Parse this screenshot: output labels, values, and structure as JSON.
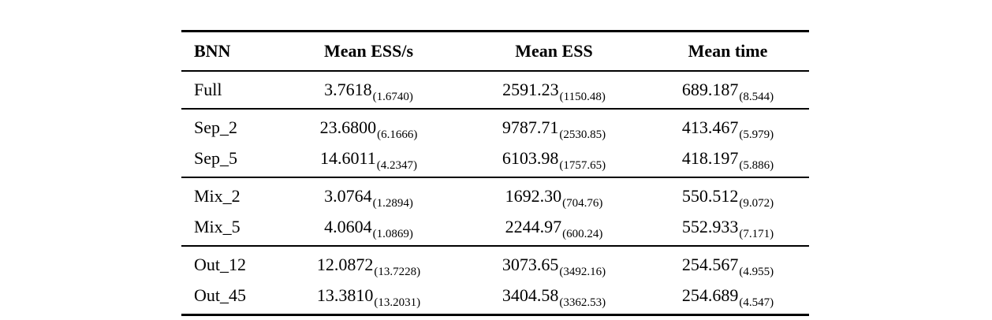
{
  "page": {
    "background_color": "#ffffff",
    "text_color": "#000000"
  },
  "table": {
    "headers": [
      "BNN",
      "Mean ESS/s",
      "Mean ESS",
      "Mean time"
    ],
    "groups": [
      {
        "rows": [
          {
            "bnn": "Full",
            "ess_per_s_mean": "3.7618",
            "ess_per_s_sd": "(1.6740)",
            "ess_mean": "2591.23",
            "ess_sd": "(1150.48)",
            "time_mean": "689.187",
            "time_sd": "(8.544)"
          }
        ]
      },
      {
        "rows": [
          {
            "bnn": "Sep_2",
            "ess_per_s_mean": "23.6800",
            "ess_per_s_sd": "(6.1666)",
            "ess_mean": "9787.71",
            "ess_sd": "(2530.85)",
            "time_mean": "413.467",
            "time_sd": "(5.979)"
          },
          {
            "bnn": "Sep_5",
            "ess_per_s_mean": "14.6011",
            "ess_per_s_sd": "(4.2347)",
            "ess_mean": "6103.98",
            "ess_sd": "(1757.65)",
            "time_mean": "418.197",
            "time_sd": "(5.886)"
          }
        ]
      },
      {
        "rows": [
          {
            "bnn": "Mix_2",
            "ess_per_s_mean": "3.0764",
            "ess_per_s_sd": "(1.2894)",
            "ess_mean": "1692.30",
            "ess_sd": "(704.76)",
            "time_mean": "550.512",
            "time_sd": "(9.072)"
          },
          {
            "bnn": "Mix_5",
            "ess_per_s_mean": "4.0604",
            "ess_per_s_sd": "(1.0869)",
            "ess_mean": "2244.97",
            "ess_sd": "(600.24)",
            "time_mean": "552.933",
            "time_sd": "(7.171)"
          }
        ]
      },
      {
        "rows": [
          {
            "bnn": "Out_12",
            "ess_per_s_mean": "12.0872",
            "ess_per_s_sd": "(13.7228)",
            "ess_mean": "3073.65",
            "ess_sd": "(3492.16)",
            "time_mean": "254.567",
            "time_sd": "(4.955)"
          },
          {
            "bnn": "Out_45",
            "ess_per_s_mean": "13.3810",
            "ess_per_s_sd": "(13.2031)",
            "ess_mean": "3404.58",
            "ess_sd": "(3362.53)",
            "time_mean": "254.689",
            "time_sd": "(4.547)"
          }
        ]
      }
    ]
  }
}
